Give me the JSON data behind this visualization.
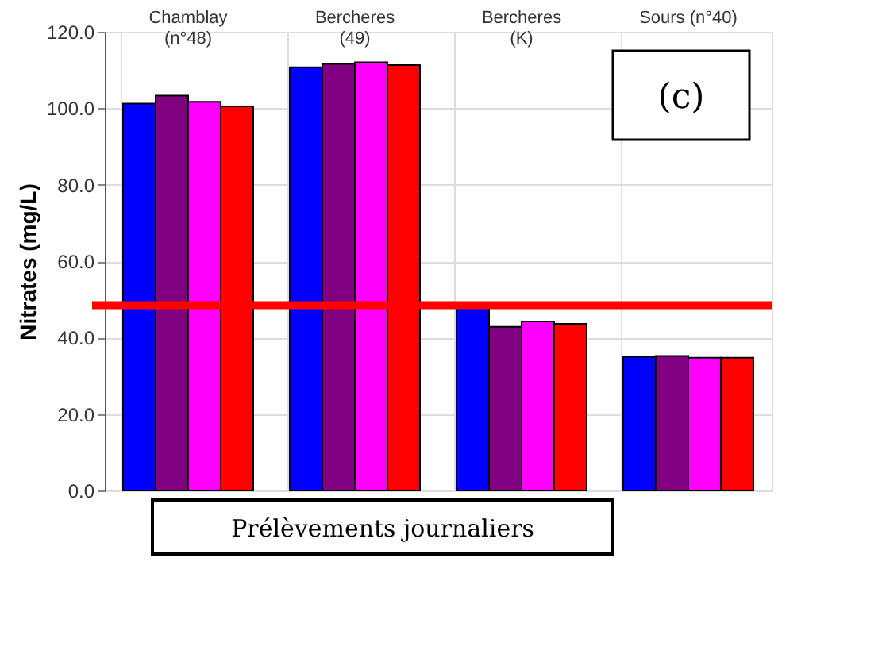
{
  "chart_data": {
    "type": "bar",
    "ylabel": "Nitrates (mg/L)",
    "xlabel": "Prélèvements journaliers",
    "categories": [
      "Chamblay\n(n°48)",
      "Bercheres\n(49)",
      "Bercheres\n(K)",
      "Sours (n°40)"
    ],
    "series": [
      {
        "color": "#0000ff",
        "values": [
          101.2,
          110.7,
          48.0,
          35.0
        ]
      },
      {
        "color": "#800080",
        "values": [
          103.3,
          111.6,
          42.8,
          35.2
        ]
      },
      {
        "color": "#ff00ff",
        "values": [
          101.7,
          112.0,
          44.2,
          34.7
        ]
      },
      {
        "color": "#ff0000",
        "values": [
          100.5,
          111.3,
          43.6,
          34.7
        ]
      }
    ],
    "ylim": [
      0,
      120
    ],
    "yticks": [
      {
        "value": 0,
        "label": "0.0"
      },
      {
        "value": 20,
        "label": "20.0"
      },
      {
        "value": 40,
        "label": "40.0"
      },
      {
        "value": 60,
        "label": "60.0"
      },
      {
        "value": 80,
        "label": "80.0"
      },
      {
        "value": 100,
        "label": "100.0"
      },
      {
        "value": 120,
        "label": "120.0"
      }
    ],
    "ref_lines": [
      {
        "axis": "y",
        "value": 48.5,
        "color": "#ff0000"
      }
    ],
    "annotations": [
      "(c)"
    ],
    "grid": true
  }
}
